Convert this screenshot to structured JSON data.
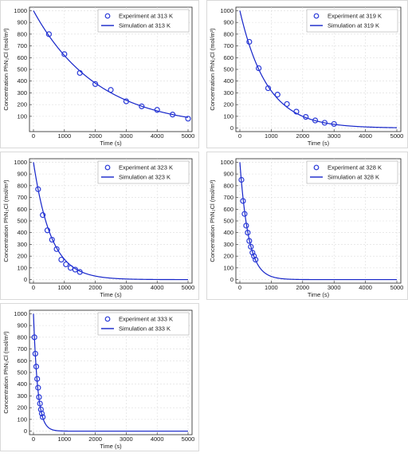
{
  "chart_data": [
    {
      "type": "scatter",
      "xlabel": "Time (s)",
      "ylabel": "Concentration PhN₂Cl (mol/m³)",
      "xlim": [
        0,
        5000
      ],
      "ylim": [
        0,
        1000
      ],
      "xticks": [
        0,
        1000,
        2000,
        3000,
        4000,
        5000
      ],
      "yticks": [
        100,
        200,
        300,
        400,
        500,
        600,
        700,
        800,
        900,
        1000
      ],
      "grid": true,
      "legend_position": "top-right",
      "series": [
        {
          "name": "Experiment at 313 K",
          "kind": "markers",
          "x": [
            500,
            1000,
            1500,
            2000,
            2500,
            3000,
            3500,
            4000,
            4500,
            5000
          ],
          "y": [
            800,
            630,
            470,
            375,
            325,
            228,
            185,
            155,
            115,
            80
          ]
        },
        {
          "name": "Simulation at 313 K",
          "kind": "line",
          "decay_rate": 0.00048
        }
      ],
      "colors": {
        "marker": "#2a3ad8",
        "line": "#1524c9"
      }
    },
    {
      "type": "scatter",
      "xlabel": "Time (s)",
      "ylabel": "Concentration PhN₂Cl (mol/m³)",
      "xlim": [
        0,
        5000
      ],
      "ylim": [
        0,
        1000
      ],
      "xticks": [
        0,
        1000,
        2000,
        3000,
        4000,
        5000
      ],
      "yticks": [
        0,
        100,
        200,
        300,
        400,
        500,
        600,
        700,
        800,
        900,
        1000
      ],
      "grid": true,
      "legend_position": "top-right",
      "series": [
        {
          "name": "Experiment at 319 K",
          "kind": "markers",
          "x": [
            300,
            600,
            900,
            1200,
            1500,
            1800,
            2100,
            2400,
            2700,
            3000
          ],
          "y": [
            735,
            510,
            340,
            285,
            205,
            140,
            95,
            65,
            45,
            35
          ]
        },
        {
          "name": "Simulation at 319 K",
          "kind": "line",
          "decay_rate": 0.00115
        }
      ],
      "colors": {
        "marker": "#2a3ad8",
        "line": "#1524c9"
      }
    },
    {
      "type": "scatter",
      "xlabel": "Time (s)",
      "ylabel": "Concentration PhN₂Cl (mol/m³)",
      "xlim": [
        0,
        5000
      ],
      "ylim": [
        0,
        1000
      ],
      "xticks": [
        0,
        1000,
        2000,
        3000,
        4000,
        5000
      ],
      "yticks": [
        0,
        100,
        200,
        300,
        400,
        500,
        600,
        700,
        800,
        900,
        1000
      ],
      "grid": true,
      "legend_position": "top-right",
      "series": [
        {
          "name": "Experiment at 323 K",
          "kind": "markers",
          "x": [
            150,
            300,
            450,
            600,
            750,
            900,
            1050,
            1200,
            1350,
            1500
          ],
          "y": [
            770,
            550,
            420,
            340,
            260,
            170,
            130,
            100,
            85,
            65
          ]
        },
        {
          "name": "Simulation at 323 K",
          "kind": "line",
          "decay_rate": 0.00175
        }
      ],
      "colors": {
        "marker": "#2a3ad8",
        "line": "#1524c9"
      }
    },
    {
      "type": "scatter",
      "xlabel": "Time (s)",
      "ylabel": "Concentration PhN₂Cl (mol/m³)",
      "xlim": [
        0,
        5000
      ],
      "ylim": [
        0,
        1000
      ],
      "xticks": [
        0,
        1000,
        2000,
        3000,
        4000,
        5000
      ],
      "yticks": [
        0,
        100,
        200,
        300,
        400,
        500,
        600,
        700,
        800,
        900,
        1000
      ],
      "grid": true,
      "legend_position": "top-right",
      "series": [
        {
          "name": "Experiment at 328 K",
          "kind": "markers",
          "x": [
            50,
            100,
            150,
            200,
            250,
            300,
            350,
            400,
            450,
            500
          ],
          "y": [
            850,
            670,
            560,
            460,
            400,
            330,
            280,
            230,
            200,
            170
          ]
        },
        {
          "name": "Simulation at 328 K",
          "kind": "line",
          "decay_rate": 0.0036
        }
      ],
      "colors": {
        "marker": "#2a3ad8",
        "line": "#1524c9"
      }
    },
    {
      "type": "scatter",
      "xlabel": "Time (s)",
      "ylabel": "Concentration PhN₂Cl (mol/m³)",
      "xlim": [
        0,
        5000
      ],
      "ylim": [
        0,
        1000
      ],
      "xticks": [
        0,
        1000,
        2000,
        3000,
        4000,
        5000
      ],
      "yticks": [
        0,
        100,
        200,
        300,
        400,
        500,
        600,
        700,
        800,
        900,
        1000
      ],
      "grid": true,
      "legend_position": "top-right",
      "series": [
        {
          "name": "Experiment at 333 K",
          "kind": "markers",
          "x": [
            30,
            60,
            90,
            120,
            150,
            180,
            210,
            240,
            270,
            300
          ],
          "y": [
            800,
            660,
            550,
            445,
            370,
            290,
            235,
            185,
            150,
            120
          ]
        },
        {
          "name": "Simulation at 333 K",
          "kind": "line",
          "decay_rate": 0.0072
        }
      ],
      "colors": {
        "marker": "#2a3ad8",
        "line": "#1524c9"
      }
    }
  ]
}
